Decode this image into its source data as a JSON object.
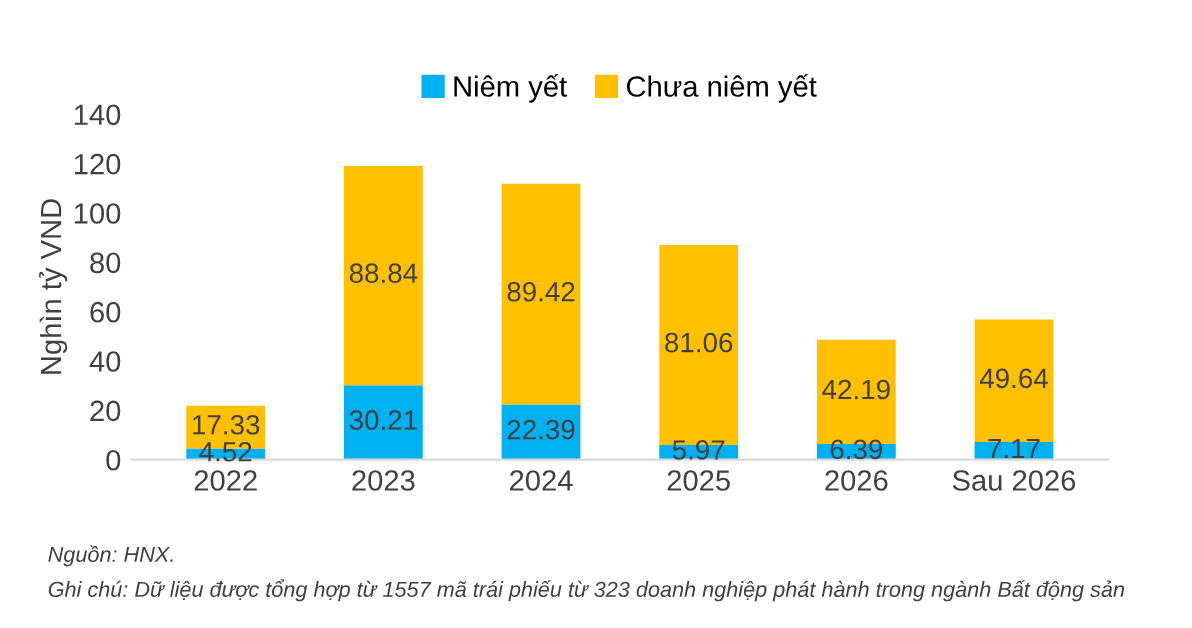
{
  "chart_data": {
    "type": "bar",
    "stacked": true,
    "ylabel": "Nghìn tỷ VND",
    "categories": [
      "2022",
      "2023",
      "2024",
      "2025",
      "2026",
      "Sau 2026"
    ],
    "series": [
      {
        "name": "Niêm yết",
        "color": "#00b0f0",
        "values": [
          4.52,
          30.21,
          22.39,
          5.97,
          6.39,
          7.17
        ]
      },
      {
        "name": "Chưa niêm yết",
        "color": "#ffc000",
        "values": [
          17.33,
          88.84,
          89.42,
          81.06,
          42.19,
          49.64
        ]
      }
    ],
    "ylim": [
      0,
      140
    ],
    "yticks": [
      0,
      20,
      40,
      60,
      80,
      100,
      120,
      140
    ],
    "data_labels": true,
    "grid": false,
    "legend": "top",
    "annotations": [
      "Nguồn: HNX.",
      "Ghi chú: Dữ liệu được tổng hợp từ 1557 mã trái phiếu từ 323 doanh nghiệp phát hành trong ngành Bất động sản"
    ]
  }
}
